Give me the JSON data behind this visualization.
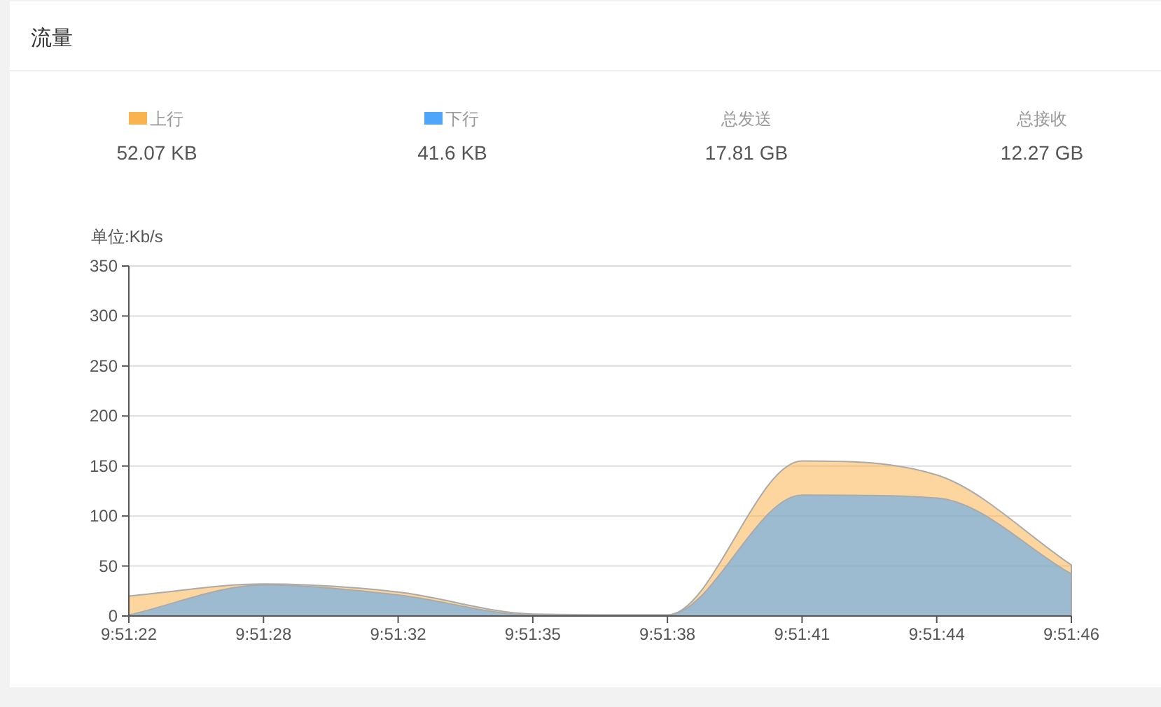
{
  "chart_data": {
    "type": "area",
    "title": "流量",
    "ylabel": "单位:Kb/s",
    "categories": [
      "9:51:22",
      "9:51:28",
      "9:51:32",
      "9:51:35",
      "9:51:38",
      "9:51:41",
      "9:51:44",
      "9:51:46"
    ],
    "series": [
      {
        "name": "上行",
        "color": "#f9b44f",
        "values": [
          20,
          32,
          24,
          2,
          1,
          155,
          141,
          51
        ]
      },
      {
        "name": "下行",
        "color": "#4da6fa",
        "values": [
          1,
          31,
          21,
          1,
          1,
          121,
          118,
          42
        ]
      }
    ],
    "annotations": [
      "52.07 KB",
      "41.6 KB",
      "总发送",
      "17.81 GB",
      "总接收",
      "12.27 GB"
    ],
    "ylim": [
      0,
      350
    ],
    "yticks": [
      0,
      50,
      100,
      150,
      200,
      250,
      300,
      350
    ],
    "grid": "y",
    "legend": "top"
  }
}
